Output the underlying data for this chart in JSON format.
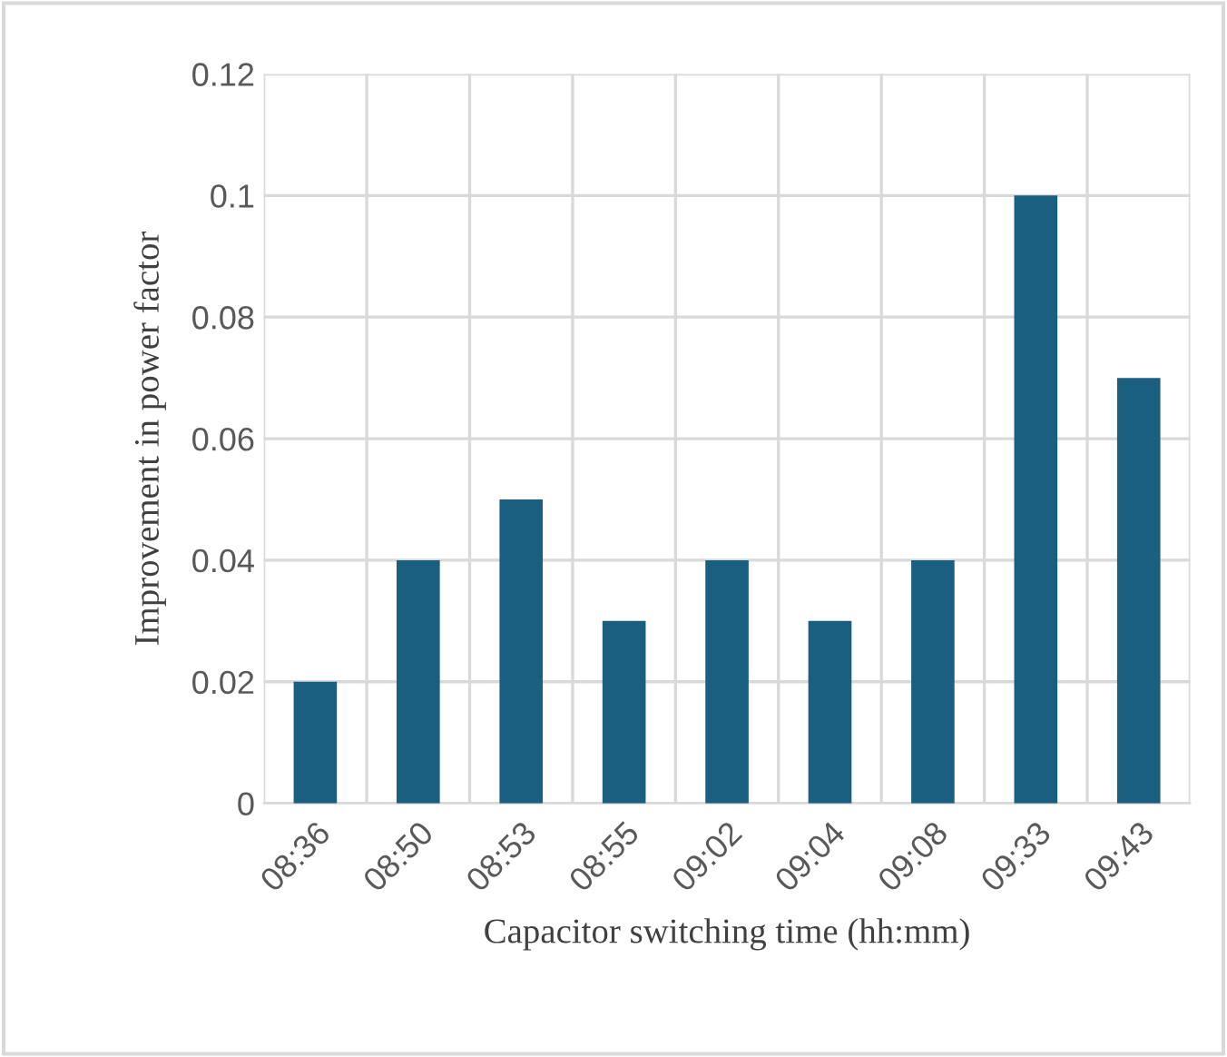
{
  "chart_data": {
    "type": "bar",
    "xlabel": "Capacitor switching time (hh:mm)",
    "ylabel": "Improvement in power factor",
    "categories": [
      "08:36",
      "08:50",
      "08:53",
      "08:55",
      "09:02",
      "09:04",
      "09:08",
      "09:33",
      "09:43"
    ],
    "values": [
      0.02,
      0.04,
      0.05,
      0.03,
      0.04,
      0.03,
      0.04,
      0.1,
      0.07
    ],
    "color": "#1a5e80",
    "ylim": [
      0,
      0.12
    ],
    "yticks": [
      0,
      0.02,
      0.04,
      0.06,
      0.08,
      0.1,
      0.12
    ],
    "grid": true
  }
}
